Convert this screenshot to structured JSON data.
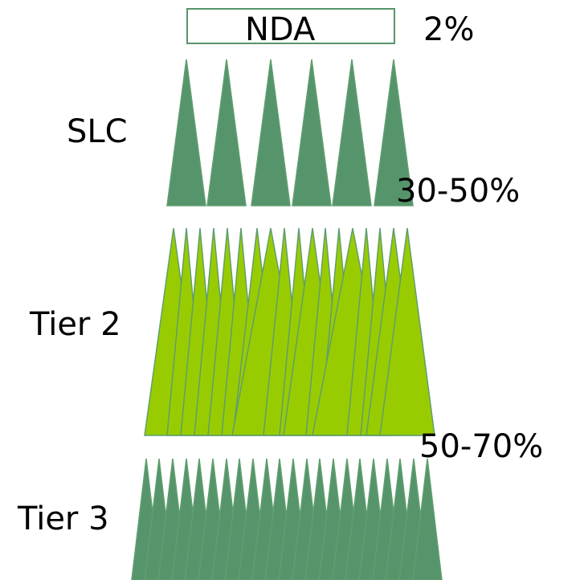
{
  "nda": {
    "label": "NDA",
    "percent": "2%"
  },
  "tiers": [
    {
      "label": "SLC",
      "percent": "30-50%",
      "color": "#56956b"
    },
    {
      "label": "Tier 2",
      "percent": "50-70%",
      "color": "#99cc00"
    },
    {
      "label": "Tier 3",
      "percent": "",
      "color": "#56956b"
    }
  ],
  "colors": {
    "nda_border": "#56956b",
    "outline": "#5f9e6e"
  }
}
